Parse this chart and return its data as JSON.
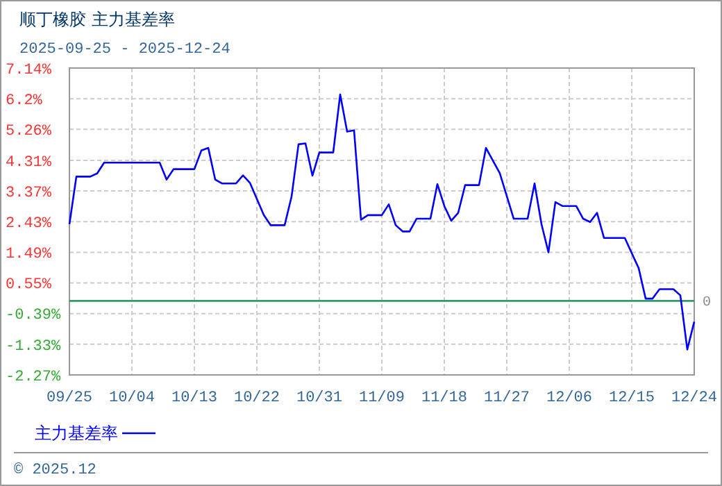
{
  "chart_data": {
    "type": "line",
    "title": "顺丁橡胶 主力基差率",
    "subtitle": "2025-09-25 - 2025-12-24",
    "x": [
      "2025-09-25",
      "2025-09-26",
      "2025-09-28",
      "2025-09-29",
      "2025-09-30",
      "2025-10-08",
      "2025-10-09",
      "2025-10-10",
      "2025-10-13",
      "2025-10-14",
      "2025-10-15",
      "2025-10-16",
      "2025-10-17",
      "2025-10-19",
      "2025-10-20",
      "2025-10-21",
      "2025-10-23",
      "2025-10-24",
      "2025-10-26",
      "2025-10-27",
      "2025-10-28",
      "2025-10-29",
      "2025-10-30",
      "2025-10-31",
      "2025-11-02",
      "2025-11-03",
      "2025-11-04",
      "2025-11-05",
      "2025-11-06",
      "2025-11-07",
      "2025-11-09",
      "2025-11-10",
      "2025-11-11",
      "2025-11-12",
      "2025-11-13",
      "2025-11-14",
      "2025-11-16",
      "2025-11-17",
      "2025-11-18",
      "2025-11-19",
      "2025-11-20",
      "2025-11-21",
      "2025-11-23",
      "2025-11-24",
      "2025-11-26",
      "2025-11-28",
      "2025-11-30",
      "2025-12-01",
      "2025-12-02",
      "2025-12-03",
      "2025-12-04",
      "2025-12-05",
      "2025-12-07",
      "2025-12-08",
      "2025-12-09",
      "2025-12-10",
      "2025-12-11",
      "2025-12-14",
      "2025-12-16",
      "2025-12-17",
      "2025-12-18",
      "2025-12-19",
      "2025-12-21",
      "2025-12-22",
      "2025-12-23",
      "2025-12-24"
    ],
    "series": [
      {
        "name": "主力基差率",
        "color": "#0000ff",
        "values": [
          2.35,
          3.81,
          3.81,
          3.91,
          4.24,
          4.24,
          3.72,
          4.04,
          4.04,
          4.61,
          4.69,
          3.72,
          3.6,
          3.6,
          3.85,
          3.62,
          2.63,
          2.32,
          2.32,
          3.2,
          4.8,
          4.83,
          3.84,
          4.55,
          4.55,
          6.33,
          5.19,
          5.23,
          2.49,
          2.63,
          2.63,
          2.96,
          2.32,
          2.13,
          2.13,
          2.52,
          2.52,
          3.58,
          2.91,
          2.46,
          2.7,
          3.55,
          3.55,
          4.69,
          3.91,
          2.52,
          2.52,
          3.6,
          2.35,
          1.49,
          3.03,
          2.91,
          2.91,
          2.52,
          2.42,
          2.7,
          1.93,
          1.93,
          1.0,
          0.07,
          0.07,
          0.36,
          0.36,
          0.17,
          -1.49,
          -0.64
        ]
      }
    ],
    "xlim": [
      "2025-09-25",
      "2025-12-24"
    ],
    "xticks": [
      {
        "value": "2025-09-25",
        "label": "09/25"
      },
      {
        "value": "2025-10-04",
        "label": "10/04"
      },
      {
        "value": "2025-10-13",
        "label": "10/13"
      },
      {
        "value": "2025-10-22",
        "label": "10/22"
      },
      {
        "value": "2025-10-31",
        "label": "10/31"
      },
      {
        "value": "2025-11-09",
        "label": "11/09"
      },
      {
        "value": "2025-11-18",
        "label": "11/18"
      },
      {
        "value": "2025-11-27",
        "label": "11/27"
      },
      {
        "value": "2025-12-06",
        "label": "12/06"
      },
      {
        "value": "2025-12-15",
        "label": "12/15"
      },
      {
        "value": "2025-12-24",
        "label": "12/24"
      }
    ],
    "ylim": [
      -2.27,
      7.14
    ],
    "yticks": [
      {
        "value": -2.27,
        "label": "-2.27%"
      },
      {
        "value": -1.33,
        "label": "-1.33%"
      },
      {
        "value": -0.39,
        "label": "-0.39%"
      },
      {
        "value": 0.55,
        "label": "0.55%"
      },
      {
        "value": 1.49,
        "label": "1.49%"
      },
      {
        "value": 2.43,
        "label": "2.43%"
      },
      {
        "value": 3.37,
        "label": "3.37%"
      },
      {
        "value": 4.31,
        "label": "4.31%"
      },
      {
        "value": 5.26,
        "label": "5.26%"
      },
      {
        "value": 6.2,
        "label": "6.2%"
      },
      {
        "value": 7.14,
        "label": "7.14%"
      }
    ],
    "ref_lines": [
      {
        "axis": "y",
        "value": 0,
        "label": "0",
        "color": "#339966"
      }
    ],
    "grid": true,
    "legend": "bottom left",
    "marker": "none",
    "line_style": "solid",
    "annotations": [
      "© 2025.12"
    ]
  }
}
